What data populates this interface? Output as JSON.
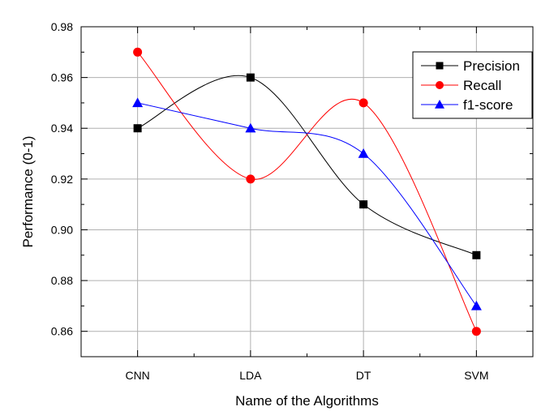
{
  "chart_data": {
    "type": "line",
    "title": "",
    "xlabel": "Name of the Algorithms",
    "ylabel": "Performance (0-1)",
    "categories": [
      "CNN",
      "LDA",
      "DT",
      "SVM"
    ],
    "ylim": [
      0.85,
      0.98
    ],
    "yticks": [
      "0.86",
      "0.88",
      "0.90",
      "0.92",
      "0.94",
      "0.96",
      "0.98"
    ],
    "grid": true,
    "smooth": true,
    "legend_position": "top-right",
    "series": [
      {
        "name": "Precision",
        "color": "#000000",
        "marker": "square",
        "values": [
          0.94,
          0.96,
          0.91,
          0.89
        ]
      },
      {
        "name": "Recall",
        "color": "#ff0000",
        "marker": "circle",
        "values": [
          0.97,
          0.92,
          0.95,
          0.86
        ]
      },
      {
        "name": "f1-score",
        "color": "#0000ff",
        "marker": "triangle",
        "values": [
          0.95,
          0.94,
          0.93,
          0.87
        ]
      }
    ]
  }
}
